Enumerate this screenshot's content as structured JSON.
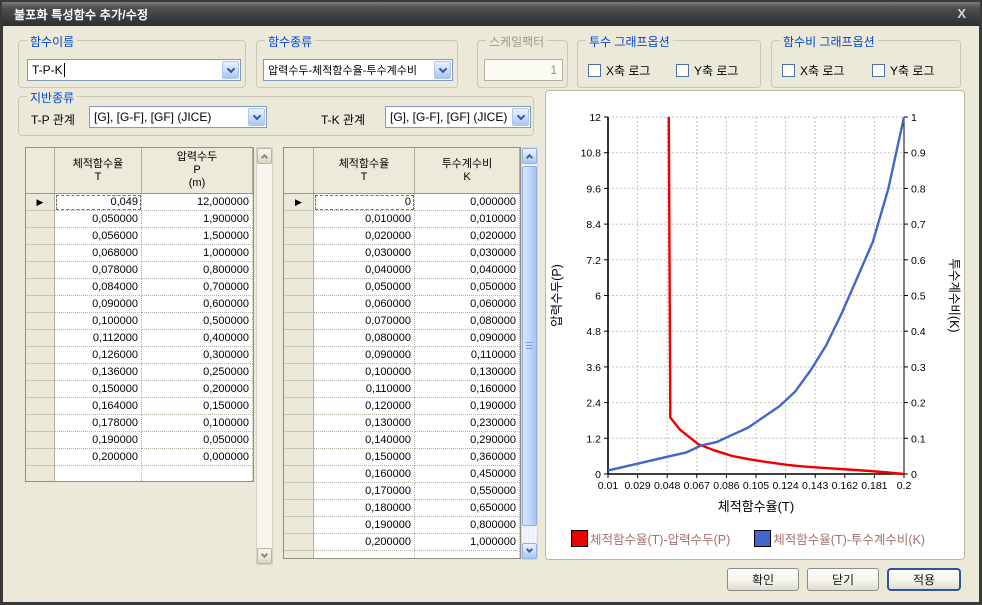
{
  "window": {
    "title": "불포화 특성함수 추가/수정",
    "close_label": "X"
  },
  "groups": {
    "function_name": {
      "label": "함수이름",
      "value": "T-P-K"
    },
    "function_type": {
      "label": "함수종류",
      "value": "압력수두-체적함수율-투수계수비"
    },
    "scale_factor": {
      "label": "스케일팩터",
      "value": "1"
    },
    "perm_graph_options": {
      "label": "투수 그래프옵션",
      "checkboxes": [
        {
          "label": "X축 로그",
          "checked": false
        },
        {
          "label": "Y축 로그",
          "checked": false
        }
      ]
    },
    "wc_graph_options": {
      "label": "함수비 그래프옵션",
      "checkboxes": [
        {
          "label": "X축 로그",
          "checked": false
        },
        {
          "label": "Y축 로그",
          "checked": false
        }
      ]
    },
    "soil_type": {
      "label": "지반종류",
      "tp_label": "T-P 관계",
      "tp_value": "[G], [G-F], [GF] (JICE)",
      "tk_label": "T-K 관계",
      "tk_value": "[G], [G-F], [GF] (JICE)"
    }
  },
  "tables": {
    "tp": {
      "headers": [
        [
          "체적함수율",
          "T"
        ],
        [
          "압력수두",
          "P",
          "(m)"
        ]
      ],
      "rows": [
        [
          "0,049",
          "12,000000"
        ],
        [
          "0,050000",
          "1,900000"
        ],
        [
          "0,056000",
          "1,500000"
        ],
        [
          "0,068000",
          "1,000000"
        ],
        [
          "0,078000",
          "0,800000"
        ],
        [
          "0,084000",
          "0,700000"
        ],
        [
          "0,090000",
          "0,600000"
        ],
        [
          "0,100000",
          "0,500000"
        ],
        [
          "0,112000",
          "0,400000"
        ],
        [
          "0,126000",
          "0,300000"
        ],
        [
          "0,136000",
          "0,250000"
        ],
        [
          "0,150000",
          "0,200000"
        ],
        [
          "0,164000",
          "0,150000"
        ],
        [
          "0,178000",
          "0,100000"
        ],
        [
          "0,190000",
          "0,050000"
        ],
        [
          "0,200000",
          "0,000000"
        ]
      ]
    },
    "tk": {
      "headers": [
        [
          "체적함수율",
          "T"
        ],
        [
          "투수계수비",
          "K"
        ]
      ],
      "rows": [
        [
          "0",
          "0,000000"
        ],
        [
          "0,010000",
          "0,010000"
        ],
        [
          "0,020000",
          "0,020000"
        ],
        [
          "0,030000",
          "0,030000"
        ],
        [
          "0,040000",
          "0,040000"
        ],
        [
          "0,050000",
          "0,050000"
        ],
        [
          "0,060000",
          "0,060000"
        ],
        [
          "0,070000",
          "0,080000"
        ],
        [
          "0,080000",
          "0,090000"
        ],
        [
          "0,090000",
          "0,110000"
        ],
        [
          "0,100000",
          "0,130000"
        ],
        [
          "0,110000",
          "0,160000"
        ],
        [
          "0,120000",
          "0,190000"
        ],
        [
          "0,130000",
          "0,230000"
        ],
        [
          "0,140000",
          "0,290000"
        ],
        [
          "0,150000",
          "0,360000"
        ],
        [
          "0,160000",
          "0,450000"
        ],
        [
          "0,170000",
          "0,550000"
        ],
        [
          "0,180000",
          "0,650000"
        ],
        [
          "0,190000",
          "0,800000"
        ],
        [
          "0,200000",
          "1,000000"
        ]
      ]
    }
  },
  "buttons": [
    {
      "label": "확인"
    },
    {
      "label": "닫기"
    },
    {
      "label": "적용"
    }
  ],
  "colors": {
    "accent_blue": "#0046d5",
    "series_red": "#ee0000",
    "series_blue": "#4166cc",
    "legend_text": "#a57070"
  },
  "chart_data": {
    "type": "line",
    "title": "",
    "xlabel": "체적함수율(T)",
    "ylabel_left": "압력수두(P)",
    "ylabel_right": "투수계수비(K)",
    "xlim": [
      0.01,
      0.2
    ],
    "ylim_left": [
      0,
      12
    ],
    "ylim_right": [
      0,
      1
    ],
    "x_ticks": [
      "0.01",
      "0.029",
      "0.048",
      "0.067",
      "0.086",
      "0.105",
      "0.124",
      "0.143",
      "0.162",
      "0.181",
      "0.2"
    ],
    "y_ticks_left": [
      "12",
      "10.8",
      "9.6",
      "8.4",
      "7.2",
      "6",
      "4.8",
      "3.6",
      "2.4",
      "1.2",
      "0"
    ],
    "y_ticks_right": [
      "1",
      "0.9",
      "0.8",
      "0.7",
      "0.6",
      "0.5",
      "0.4",
      "0.3",
      "0.2",
      "0.1",
      "0"
    ],
    "grid": true,
    "legend_position": "bottom",
    "series": [
      {
        "name": "체적함수율(T)-압력수두(P)",
        "color": "#ee0000",
        "axis": "left",
        "points": [
          [
            0.049,
            12
          ],
          [
            0.05,
            1.9
          ],
          [
            0.056,
            1.5
          ],
          [
            0.068,
            1.0
          ],
          [
            0.078,
            0.8
          ],
          [
            0.084,
            0.7
          ],
          [
            0.09,
            0.6
          ],
          [
            0.1,
            0.5
          ],
          [
            0.112,
            0.4
          ],
          [
            0.126,
            0.3
          ],
          [
            0.136,
            0.25
          ],
          [
            0.15,
            0.2
          ],
          [
            0.164,
            0.15
          ],
          [
            0.178,
            0.1
          ],
          [
            0.19,
            0.05
          ],
          [
            0.2,
            0
          ]
        ]
      },
      {
        "name": "체적함수율(T)-투수계수비(K)",
        "color": "#4166cc",
        "axis": "right",
        "points": [
          [
            0.01,
            0.01
          ],
          [
            0.02,
            0.02
          ],
          [
            0.03,
            0.03
          ],
          [
            0.04,
            0.04
          ],
          [
            0.05,
            0.05
          ],
          [
            0.06,
            0.06
          ],
          [
            0.07,
            0.08
          ],
          [
            0.08,
            0.09
          ],
          [
            0.09,
            0.11
          ],
          [
            0.1,
            0.13
          ],
          [
            0.11,
            0.16
          ],
          [
            0.12,
            0.19
          ],
          [
            0.13,
            0.23
          ],
          [
            0.14,
            0.29
          ],
          [
            0.15,
            0.36
          ],
          [
            0.16,
            0.45
          ],
          [
            0.17,
            0.55
          ],
          [
            0.18,
            0.65
          ],
          [
            0.19,
            0.8
          ],
          [
            0.2,
            1.0
          ]
        ]
      }
    ]
  }
}
